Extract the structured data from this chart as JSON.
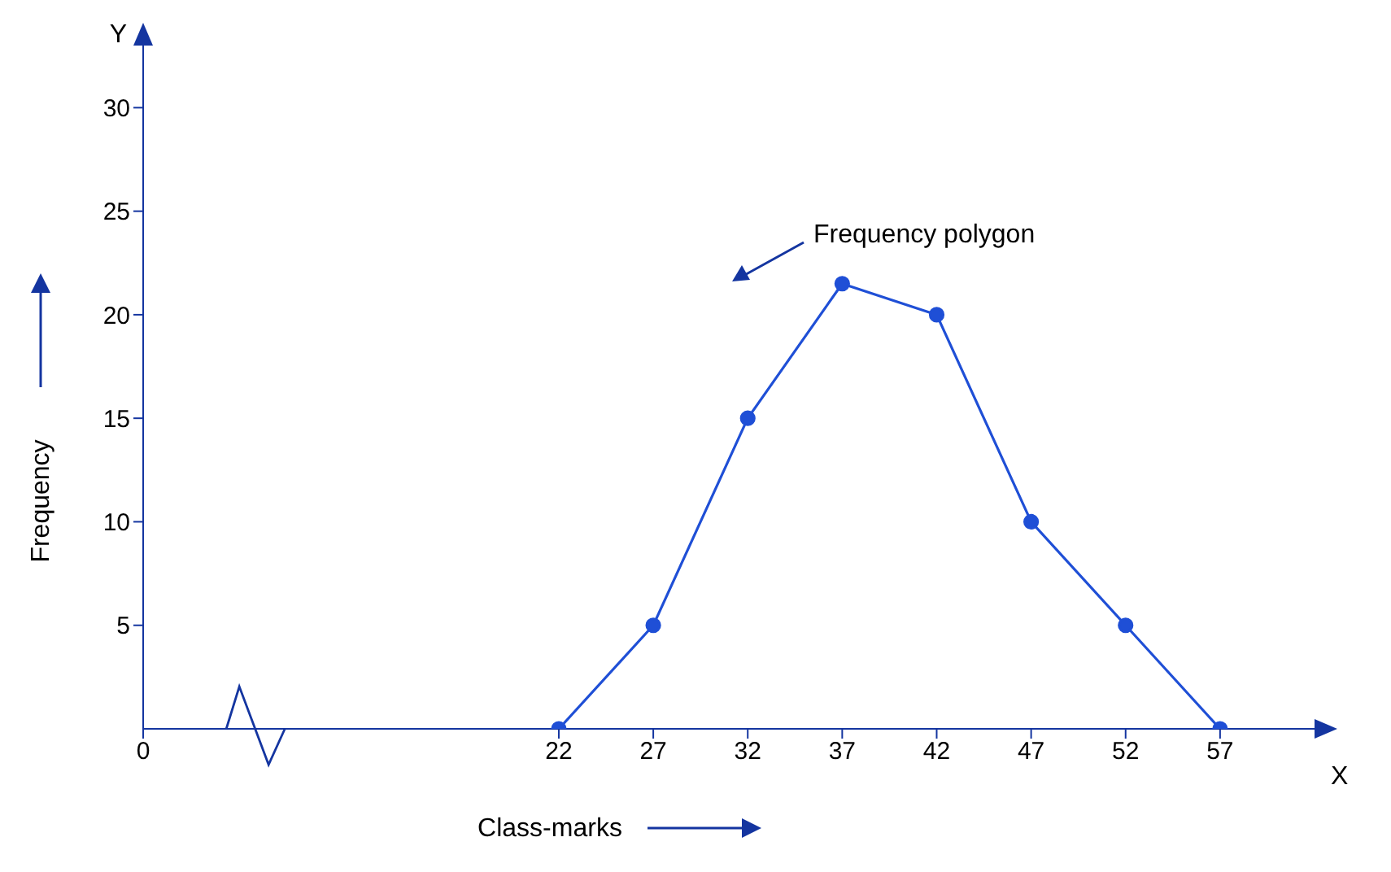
{
  "chart_data": {
    "type": "line",
    "xlabel": "Class-marks",
    "ylabel": "Frequency",
    "x": [
      22,
      27,
      32,
      37,
      42,
      47,
      52,
      57
    ],
    "values": [
      0,
      5,
      15,
      21.5,
      20,
      10,
      5,
      0
    ],
    "color": "#1f4fd6",
    "marker": "circle",
    "line_style": "solid",
    "grid": false,
    "legend": false,
    "xlim": [
      0,
      62
    ],
    "xticks": [
      0,
      22,
      27,
      32,
      37,
      42,
      47,
      52,
      57
    ],
    "ylim": [
      0,
      33
    ],
    "yticks": [
      5,
      10,
      15,
      20,
      25,
      30
    ],
    "annotations": [
      "X",
      "Y",
      "Frequency polygon"
    ]
  }
}
